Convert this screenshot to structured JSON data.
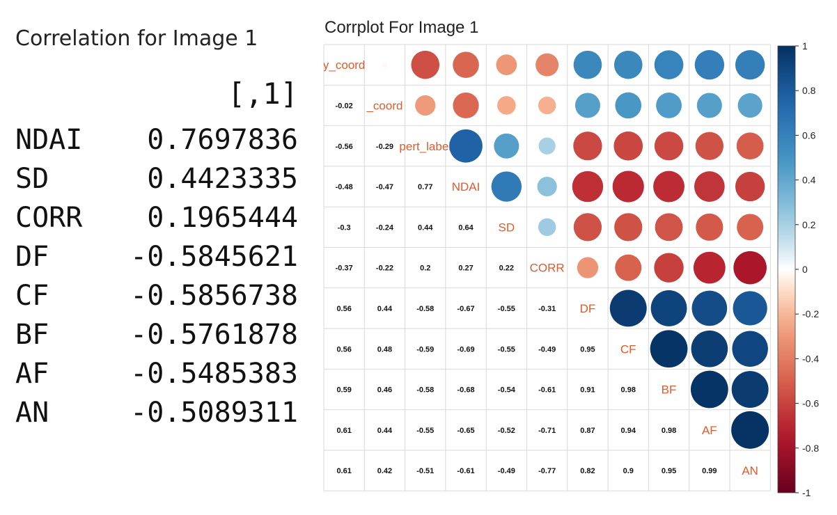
{
  "left_table": {
    "title": "Correlation for Image 1",
    "col_header": "[,1]",
    "rows": [
      {
        "name": "NDAI",
        "value": "0.7697836"
      },
      {
        "name": "SD",
        "value": "0.4423335"
      },
      {
        "name": "CORR",
        "value": "0.1965444"
      },
      {
        "name": "DF",
        "value": "-0.5845621"
      },
      {
        "name": "CF",
        "value": "-0.5856738"
      },
      {
        "name": "BF",
        "value": "-0.5761878"
      },
      {
        "name": "AF",
        "value": "-0.5485383"
      },
      {
        "name": "AN",
        "value": "-0.5089311"
      }
    ]
  },
  "chart_data": {
    "type": "heatmap",
    "title": "Corrplot For Image 1",
    "variables": [
      "y_coord",
      "_coord",
      "pert_label",
      "NDAI",
      "SD",
      "CORR",
      "DF",
      "CF",
      "BF",
      "AF",
      "AN"
    ],
    "matrix": [
      [
        1,
        -0.02,
        -0.56,
        -0.48,
        -0.3,
        -0.37,
        0.56,
        0.56,
        0.59,
        0.61,
        0.61
      ],
      [
        -0.02,
        1,
        -0.29,
        -0.47,
        -0.24,
        -0.22,
        0.44,
        0.48,
        0.46,
        0.44,
        0.42
      ],
      [
        -0.56,
        -0.29,
        1,
        0.77,
        0.44,
        0.2,
        -0.58,
        -0.59,
        -0.58,
        -0.55,
        -0.51
      ],
      [
        -0.48,
        -0.47,
        0.77,
        1,
        0.64,
        0.27,
        -0.67,
        -0.69,
        -0.68,
        -0.65,
        -0.61
      ],
      [
        -0.3,
        -0.24,
        0.44,
        0.64,
        1,
        0.22,
        -0.55,
        -0.55,
        -0.54,
        -0.52,
        -0.49
      ],
      [
        -0.37,
        -0.22,
        0.2,
        0.27,
        0.22,
        1,
        -0.31,
        -0.49,
        -0.61,
        -0.71,
        -0.77
      ],
      [
        0.56,
        0.44,
        -0.58,
        -0.67,
        -0.55,
        -0.31,
        1,
        0.95,
        0.91,
        0.87,
        0.82
      ],
      [
        0.56,
        0.48,
        -0.59,
        -0.69,
        -0.55,
        -0.49,
        0.95,
        1,
        0.98,
        0.94,
        0.9
      ],
      [
        0.59,
        0.46,
        -0.58,
        -0.68,
        -0.54,
        -0.61,
        0.91,
        0.98,
        1,
        0.98,
        0.95
      ],
      [
        0.61,
        0.44,
        -0.55,
        -0.65,
        -0.52,
        -0.71,
        0.87,
        0.94,
        0.98,
        1,
        0.99
      ],
      [
        0.61,
        0.42,
        -0.51,
        -0.61,
        -0.49,
        -0.77,
        0.82,
        0.9,
        0.95,
        0.99,
        1
      ]
    ],
    "lower_labels": [
      [],
      [
        "-0.02"
      ],
      [
        "-0.56",
        "-0.29"
      ],
      [
        "-0.48",
        "-0.47",
        "0.77"
      ],
      [
        "-0.3",
        "-0.24",
        "0.44",
        "0.64"
      ],
      [
        "-0.37",
        "-0.22",
        "0.2",
        "0.27",
        "0.22"
      ],
      [
        "0.56",
        "0.44",
        "-0.58",
        "-0.67",
        "-0.55",
        "-0.31"
      ],
      [
        "0.56",
        "0.48",
        "-0.59",
        "-0.69",
        "-0.55",
        "-0.49",
        "0.95"
      ],
      [
        "0.59",
        "0.46",
        "-0.58",
        "-0.68",
        "-0.54",
        "-0.61",
        "0.91",
        "0.98"
      ],
      [
        "0.61",
        "0.44",
        "-0.55",
        "-0.65",
        "-0.52",
        "-0.71",
        "0.87",
        "0.94",
        "0.98"
      ],
      [
        "0.61",
        "0.42",
        "-0.51",
        "-0.61",
        "-0.49",
        "-0.77",
        "0.82",
        "0.9",
        "0.95",
        "0.99"
      ]
    ],
    "upper_marks": "circle",
    "lower_marks": "number",
    "colorbar": {
      "range": [
        -1,
        1
      ],
      "ticks": [
        "1",
        "0.8",
        "0.6",
        "0.4",
        "0.2",
        "0",
        "-0.2",
        "-0.4",
        "-0.6",
        "-0.8",
        "-1"
      ],
      "placement": "right"
    },
    "colors": {
      "negative": "#67001f",
      "zero": "#ffffff",
      "positive": "#053061",
      "diag_label": "#e05a2b",
      "grid": "#d9d9d9"
    }
  }
}
